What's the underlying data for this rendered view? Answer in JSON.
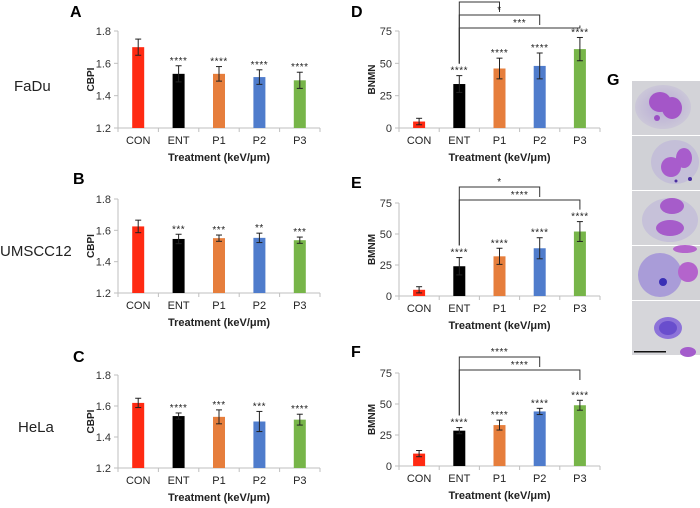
{
  "figure_label_g": "G",
  "cell_lines": [
    "FaDu",
    "UMSCC12",
    "HeLa"
  ],
  "colors": {
    "CON": "#ff2a12",
    "ENT": "#000000",
    "P1": "#e67e3c",
    "P2": "#4f7ccc",
    "P3": "#77b549",
    "axis": "#bfbfbf",
    "error": "#222222"
  },
  "chart_data": [
    {
      "id": "A",
      "type": "bar",
      "title": "A",
      "cell_line": "FaDu",
      "xlabel": "Treatment (keV/μm)",
      "ylabel": "CBPI",
      "ylim": [
        1.2,
        1.8
      ],
      "yticks": [
        "1.2",
        "1.4",
        "1.6",
        "1.8"
      ],
      "ytick_values": [
        1.2,
        1.4,
        1.6,
        1.8
      ],
      "categories": [
        "CON",
        "ENT",
        "P1",
        "P2",
        "P3"
      ],
      "values": [
        1.7,
        1.535,
        1.535,
        1.515,
        1.495
      ],
      "errors": [
        0.05,
        0.05,
        0.045,
        0.045,
        0.05
      ],
      "significance": [
        "",
        "****",
        "****",
        "****",
        "****"
      ],
      "comparisons": []
    },
    {
      "id": "B",
      "type": "bar",
      "title": "B",
      "cell_line": "UMSCC12",
      "xlabel": "Treatment (keV/μm)",
      "ylabel": "CBPI",
      "ylim": [
        1.2,
        1.8
      ],
      "yticks": [
        "1.2",
        "1.4",
        "1.6",
        "1.8"
      ],
      "ytick_values": [
        1.2,
        1.4,
        1.6,
        1.8
      ],
      "categories": [
        "CON",
        "ENT",
        "P1",
        "P2",
        "P3"
      ],
      "values": [
        1.625,
        1.545,
        1.55,
        1.552,
        1.537
      ],
      "errors": [
        0.04,
        0.03,
        0.02,
        0.03,
        0.02
      ],
      "significance": [
        "",
        "***",
        "***",
        "**",
        "***"
      ],
      "comparisons": []
    },
    {
      "id": "C",
      "type": "bar",
      "title": "C",
      "cell_line": "HeLa",
      "xlabel": "Treatment (keV/μm)",
      "ylabel": "CBPI",
      "ylim": [
        1.2,
        1.8
      ],
      "yticks": [
        "1.2",
        "1.4",
        "1.6",
        "1.8"
      ],
      "ytick_values": [
        1.2,
        1.4,
        1.6,
        1.8
      ],
      "categories": [
        "CON",
        "ENT",
        "P1",
        "P2",
        "P3"
      ],
      "values": [
        1.62,
        1.535,
        1.53,
        1.5,
        1.512
      ],
      "errors": [
        0.03,
        0.02,
        0.045,
        0.065,
        0.035
      ],
      "significance": [
        "",
        "****",
        "***",
        "***",
        "****"
      ],
      "comparisons": []
    },
    {
      "id": "D",
      "type": "bar",
      "title": "D",
      "xlabel": "Treatment (keV/μm)",
      "ylabel": "BNMN",
      "ylim": [
        0,
        75
      ],
      "yticks": [
        "0",
        "25",
        "50",
        "75"
      ],
      "ytick_values": [
        0,
        25,
        50,
        75
      ],
      "categories": [
        "CON",
        "ENT",
        "P1",
        "P2",
        "P3"
      ],
      "values": [
        5,
        34,
        46,
        48,
        61
      ],
      "errors": [
        2.5,
        6.5,
        8,
        10,
        9
      ],
      "significance": [
        "",
        "****",
        "****",
        "****",
        "****"
      ],
      "comparisons": [
        {
          "from": "ENT",
          "to": "P1",
          "label": "*"
        },
        {
          "from": "ENT",
          "to": "P2",
          "label": "*"
        },
        {
          "from": "ENT",
          "to": "P3",
          "label": "***"
        }
      ]
    },
    {
      "id": "E",
      "type": "bar",
      "title": "E",
      "xlabel": "Treatment (keV/μm)",
      "ylabel": "BMNM",
      "ylim": [
        0,
        75
      ],
      "yticks": [
        "0",
        "25",
        "50",
        "75"
      ],
      "ytick_values": [
        0,
        25,
        50,
        75
      ],
      "categories": [
        "CON",
        "ENT",
        "P1",
        "P2",
        "P3"
      ],
      "values": [
        5,
        24,
        32,
        38.5,
        52
      ],
      "errors": [
        2.5,
        7,
        6.5,
        8.5,
        8
      ],
      "significance": [
        "",
        "****",
        "****",
        "****",
        "****"
      ],
      "comparisons": [
        {
          "from": "ENT",
          "to": "P2",
          "label": "*"
        },
        {
          "from": "ENT",
          "to": "P3",
          "label": "****"
        }
      ]
    },
    {
      "id": "F",
      "type": "bar",
      "title": "F",
      "xlabel": "Treatment (keV/μm)",
      "ylabel": "BMNM",
      "ylim": [
        0,
        75
      ],
      "yticks": [
        "0",
        "25",
        "50",
        "75"
      ],
      "ytick_values": [
        0,
        25,
        50,
        75
      ],
      "categories": [
        "CON",
        "ENT",
        "P1",
        "P2",
        "P3"
      ],
      "values": [
        10,
        28.5,
        33,
        44,
        49
      ],
      "errors": [
        2.5,
        2.5,
        4,
        2.5,
        4
      ],
      "significance": [
        "",
        "****",
        "****",
        "****",
        "****"
      ],
      "comparisons": [
        {
          "from": "ENT",
          "to": "P2",
          "label": "****"
        },
        {
          "from": "ENT",
          "to": "P3",
          "label": "****"
        }
      ]
    }
  ]
}
